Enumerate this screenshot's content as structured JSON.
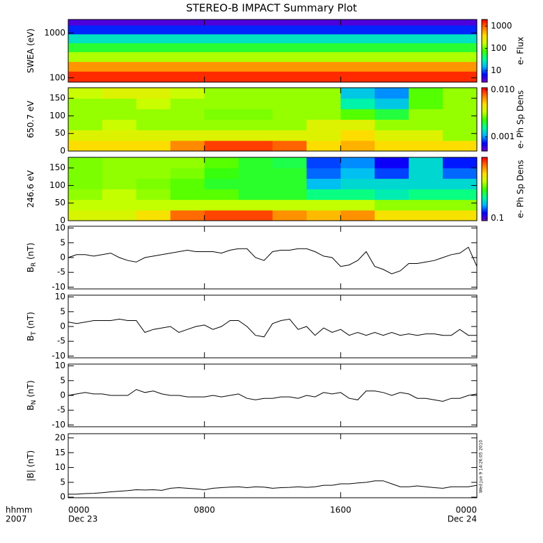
{
  "chart_data": [
    {
      "type": "heatmap",
      "title": "STEREO-B IMPACT Summary Plot",
      "ylabel": "SWEA (eV)",
      "ylog": true,
      "ylim": [
        80,
        2000
      ],
      "yticks": [
        100,
        1000
      ],
      "xlim": [
        0,
        24
      ],
      "x_edges": [
        0,
        24
      ],
      "y_edges": [
        80,
        140,
        230,
        380,
        600,
        950,
        1500,
        2000
      ],
      "z": [
        [
          1500
        ],
        [
          700
        ],
        [
          150
        ],
        [
          60
        ],
        [
          25
        ],
        [
          8
        ],
        [
          4
        ]
      ],
      "colorbar": {
        "label": "e- Flux",
        "log": true,
        "lim": [
          3,
          2000
        ],
        "ticks": [
          10,
          100,
          1000
        ]
      },
      "colormap": [
        "#7800c8",
        "#0000ff",
        "#00b4ff",
        "#00ff9a",
        "#3cff00",
        "#c8ff00",
        "#ffdc00",
        "#ff7800",
        "#ff0000"
      ]
    },
    {
      "type": "heatmap",
      "ylabel": "650.7 eV",
      "ylim": [
        0,
        180
      ],
      "yticks": [
        0,
        50,
        100,
        150
      ],
      "xlim": [
        0,
        24
      ],
      "x_edges": [
        0,
        2,
        4,
        6,
        8,
        10,
        12,
        14,
        16,
        18,
        20,
        22,
        24
      ],
      "y_edges": [
        0,
        30,
        60,
        90,
        120,
        150,
        180
      ],
      "z": [
        [
          0.005,
          0.005,
          0.005,
          0.007,
          0.009,
          0.009,
          0.008,
          0.005,
          0.006,
          0.005,
          0.005,
          0.005
        ],
        [
          0.004,
          0.004,
          0.004,
          0.004,
          0.004,
          0.004,
          0.004,
          0.004,
          0.005,
          0.004,
          0.004,
          0.003
        ],
        [
          0.003,
          0.0035,
          0.003,
          0.003,
          0.003,
          0.003,
          0.003,
          0.004,
          0.004,
          0.003,
          0.003,
          0.003
        ],
        [
          0.003,
          0.003,
          0.003,
          0.003,
          0.0028,
          0.0028,
          0.003,
          0.003,
          0.0025,
          0.002,
          0.003,
          0.003
        ],
        [
          0.003,
          0.003,
          0.0035,
          0.003,
          0.003,
          0.003,
          0.003,
          0.003,
          0.0015,
          0.0012,
          0.0025,
          0.003
        ],
        [
          0.0035,
          0.004,
          0.004,
          0.0035,
          0.003,
          0.003,
          0.003,
          0.003,
          0.0012,
          0.001,
          0.0025,
          0.003
        ]
      ],
      "colorbar": {
        "label": "e- Ph Sp Dens",
        "log": true,
        "lim": [
          0.0005,
          0.011
        ],
        "ticks": [
          {
            "value": 0.01,
            "label": "0.010"
          },
          0.001
        ]
      },
      "colormap": [
        "#7800c8",
        "#0000ff",
        "#00b4ff",
        "#00ff9a",
        "#3cff00",
        "#c8ff00",
        "#ffdc00",
        "#ff7800",
        "#ff0000"
      ]
    },
    {
      "type": "heatmap",
      "ylabel": "246.6 eV",
      "ylim": [
        0,
        180
      ],
      "yticks": [
        0,
        50,
        100,
        150
      ],
      "xlim": [
        0,
        24
      ],
      "x_edges": [
        0,
        2,
        4,
        6,
        8,
        10,
        12,
        14,
        16,
        18,
        20,
        22,
        24
      ],
      "y_edges": [
        0,
        30,
        60,
        90,
        120,
        150,
        180
      ],
      "z": [
        [
          0.5,
          0.5,
          0.6,
          0.9,
          1.0,
          1.0,
          0.8,
          0.7,
          0.8,
          0.6,
          0.6,
          0.6
        ],
        [
          0.45,
          0.45,
          0.45,
          0.45,
          0.45,
          0.45,
          0.45,
          0.45,
          0.45,
          0.4,
          0.4,
          0.4
        ],
        [
          0.4,
          0.45,
          0.4,
          0.35,
          0.35,
          0.3,
          0.3,
          0.25,
          0.25,
          0.22,
          0.25,
          0.25
        ],
        [
          0.38,
          0.4,
          0.38,
          0.35,
          0.3,
          0.3,
          0.3,
          0.18,
          0.2,
          0.2,
          0.2,
          0.2
        ],
        [
          0.38,
          0.4,
          0.4,
          0.38,
          0.32,
          0.3,
          0.3,
          0.15,
          0.18,
          0.14,
          0.2,
          0.15
        ],
        [
          0.38,
          0.4,
          0.4,
          0.4,
          0.35,
          0.3,
          0.28,
          0.14,
          0.16,
          0.12,
          0.2,
          0.13
        ]
      ],
      "colorbar": {
        "label": "e- Ph Sp Dens",
        "log": true,
        "lim": [
          0.09,
          1.2
        ],
        "ticks": [
          0.1
        ]
      },
      "colormap": [
        "#7800c8",
        "#0000ff",
        "#00b4ff",
        "#00ff9a",
        "#3cff00",
        "#c8ff00",
        "#ffdc00",
        "#ff7800",
        "#ff0000"
      ]
    },
    {
      "type": "line",
      "ylabel": "B",
      "ylabel_sub": "R",
      "ylabel_unit": "(nT)",
      "ylim": [
        -10.6,
        10.6
      ],
      "yticks": [
        -10,
        -5,
        0,
        5,
        10
      ],
      "xlim": [
        0,
        24
      ],
      "color": "#000000",
      "x": [
        0,
        0.5,
        1,
        1.5,
        2,
        2.5,
        3,
        3.5,
        4,
        4.5,
        5,
        5.5,
        6,
        6.5,
        7,
        7.5,
        8,
        8.5,
        9,
        9.5,
        10,
        10.5,
        11,
        11.5,
        12,
        12.5,
        13,
        13.5,
        14,
        14.5,
        15,
        15.5,
        16,
        16.5,
        17,
        17.5,
        18,
        18.5,
        19,
        19.5,
        20,
        20.5,
        21,
        21.5,
        22,
        22.5,
        23,
        23.5,
        24
      ],
      "values": [
        0,
        1,
        1,
        0.5,
        1,
        1.5,
        0,
        -1,
        -1.5,
        0,
        0.5,
        1,
        1.5,
        2,
        2.5,
        2,
        2,
        2,
        1.5,
        2.5,
        3,
        3,
        0,
        -1,
        2,
        2.5,
        2.5,
        3,
        3,
        2,
        0.5,
        0,
        -3,
        -2.5,
        -1,
        2,
        -3,
        -4,
        -5.5,
        -4.5,
        -2,
        -2,
        -1.5,
        -1,
        0,
        1,
        1.5,
        3.5,
        -3
      ]
    },
    {
      "type": "line",
      "ylabel": "B",
      "ylabel_sub": "T",
      "ylabel_unit": "(nT)",
      "ylim": [
        -10.6,
        10.6
      ],
      "yticks": [
        -10,
        -5,
        0,
        5,
        10
      ],
      "xlim": [
        0,
        24
      ],
      "color": "#000000",
      "x": [
        0,
        0.5,
        1,
        1.5,
        2,
        2.5,
        3,
        3.5,
        4,
        4.5,
        5,
        5.5,
        6,
        6.5,
        7,
        7.5,
        8,
        8.5,
        9,
        9.5,
        10,
        10.5,
        11,
        11.5,
        12,
        12.5,
        13,
        13.5,
        14,
        14.5,
        15,
        15.5,
        16,
        16.5,
        17,
        17.5,
        18,
        18.5,
        19,
        19.5,
        20,
        20.5,
        21,
        21.5,
        22,
        22.5,
        23,
        23.5,
        24
      ],
      "values": [
        1.5,
        1,
        1.5,
        2,
        2,
        2,
        2.5,
        2,
        2,
        -2,
        -1,
        -0.5,
        0,
        -2,
        -1,
        0,
        0.5,
        -1,
        0,
        2,
        2,
        0,
        -3,
        -3.5,
        1,
        2,
        2.5,
        -1,
        0,
        -3,
        -0.5,
        -2,
        -1,
        -3,
        -2,
        -3,
        -2,
        -3,
        -2,
        -3,
        -2.5,
        -3,
        -2.5,
        -2.5,
        -3,
        -3,
        -1,
        -3,
        -3
      ]
    },
    {
      "type": "line",
      "ylabel": "B",
      "ylabel_sub": "N",
      "ylabel_unit": "(nT)",
      "ylim": [
        -10.6,
        10.6
      ],
      "yticks": [
        -10,
        -5,
        0,
        5,
        10
      ],
      "xlim": [
        0,
        24
      ],
      "color": "#000000",
      "x": [
        0,
        0.5,
        1,
        1.5,
        2,
        2.5,
        3,
        3.5,
        4,
        4.5,
        5,
        5.5,
        6,
        6.5,
        7,
        7.5,
        8,
        8.5,
        9,
        9.5,
        10,
        10.5,
        11,
        11.5,
        12,
        12.5,
        13,
        13.5,
        14,
        14.5,
        15,
        15.5,
        16,
        16.5,
        17,
        17.5,
        18,
        18.5,
        19,
        19.5,
        20,
        20.5,
        21,
        21.5,
        22,
        22.5,
        23,
        23.5,
        24
      ],
      "values": [
        0,
        0.5,
        1,
        0.5,
        0.5,
        0,
        0,
        0,
        2,
        1,
        1.5,
        0.5,
        0,
        0,
        -0.5,
        -0.5,
        -0.5,
        0,
        -0.5,
        0,
        0.5,
        -1,
        -1.5,
        -1,
        -1,
        -0.5,
        -0.5,
        -1,
        0,
        -0.5,
        1,
        0.5,
        1,
        -1,
        -1.5,
        1.5,
        1.5,
        1,
        0,
        1,
        0.5,
        -1,
        -1,
        -1.5,
        -2,
        -1,
        -1,
        0,
        0.5
      ]
    },
    {
      "type": "line",
      "ylabel": "|B| (nT)",
      "ylim": [
        -0.2,
        21.4
      ],
      "yticks": [
        0,
        5,
        10,
        15,
        20
      ],
      "xlim": [
        0,
        24
      ],
      "color": "#000000",
      "x": [
        0,
        0.5,
        1,
        1.5,
        2,
        2.5,
        3,
        3.5,
        4,
        4.5,
        5,
        5.5,
        6,
        6.5,
        7,
        7.5,
        8,
        8.5,
        9,
        9.5,
        10,
        10.5,
        11,
        11.5,
        12,
        12.5,
        13,
        13.5,
        14,
        14.5,
        15,
        15.5,
        16,
        16.5,
        17,
        17.5,
        18,
        18.5,
        19,
        19.5,
        20,
        20.5,
        21,
        21.5,
        22,
        22.5,
        23,
        23.5,
        24
      ],
      "values": [
        1,
        1,
        1.2,
        1.3,
        1.5,
        1.8,
        2,
        2.2,
        2.5,
        2.4,
        2.5,
        2.3,
        3,
        3.2,
        3,
        2.8,
        2.5,
        3,
        3.2,
        3.4,
        3.5,
        3.2,
        3.5,
        3.4,
        3,
        3.2,
        3.3,
        3.5,
        3.3,
        3.5,
        4,
        4,
        4.5,
        4.5,
        4.8,
        5,
        5.5,
        5.5,
        4.5,
        3.5,
        3.5,
        3.8,
        3.5,
        3.2,
        3,
        3.5,
        3.5,
        3.5,
        4
      ],
      "xticks": [
        {
          "value": 0,
          "label": "0000"
        },
        {
          "value": 8,
          "label": "0800"
        },
        {
          "value": 16,
          "label": "1600"
        },
        {
          "value": 24,
          "label": "0000"
        }
      ],
      "date_labels": [
        "Dec 23",
        null,
        null,
        "Dec 24"
      ],
      "xlabel": "hhmm",
      "year": "2007",
      "timestamp": "Wed Jun  9 14:26:05 2010"
    }
  ]
}
